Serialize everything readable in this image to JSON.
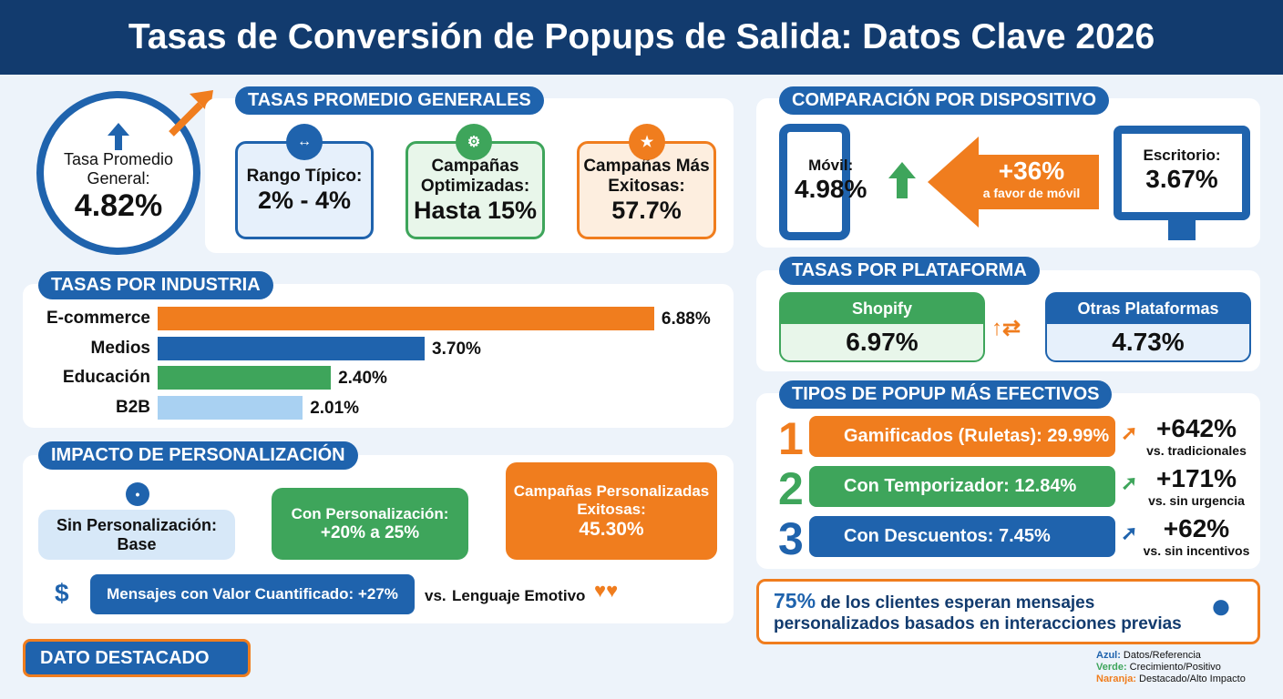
{
  "header": {
    "title": "Tasas de Conversión de Popups de Salida: Datos Clave 2026"
  },
  "average": {
    "label": "Tasa Promedio General:",
    "value": "4.82%"
  },
  "general": {
    "title": "TASAS PROMEDIO GENERALES",
    "cards": [
      {
        "label": "Rango Típico:",
        "value": "2% - 4%"
      },
      {
        "label": "Campañas Optimizadas:",
        "value": "Hasta 15%"
      },
      {
        "label": "Campañas Más Exitosas:",
        "value": "57.7%"
      }
    ]
  },
  "industry": {
    "title": "TASAS POR INDUSTRIA",
    "items": [
      {
        "label": "E-commerce",
        "value": 6.88,
        "value_label": "6.88%"
      },
      {
        "label": "Medios",
        "value": 3.7,
        "value_label": "3.70%"
      },
      {
        "label": "Educación",
        "value": 2.4,
        "value_label": "2.40%"
      },
      {
        "label": "B2B",
        "value": 2.01,
        "value_label": "2.01%"
      }
    ]
  },
  "personalization": {
    "title": "IMPACTO DE PERSONALIZACIÓN",
    "without": {
      "label": "Sin Personalización:",
      "value": "Base"
    },
    "with": {
      "label": "Con Personalización:",
      "value": "+20% a 25%"
    },
    "best": {
      "label": "Campañas Personalizadas Exitosas:",
      "value": "45.30%"
    },
    "message": "Mensajes con Valor Cuantificado: +27%",
    "versus": "vs.",
    "emotive": "Lenguaje Emotivo"
  },
  "featured_tag": "DATO DESTACADO",
  "device": {
    "title": "COMPARACIÓN POR DISPOSITIVO",
    "mobile": {
      "label": "Móvil:",
      "value": "4.98%"
    },
    "difference": {
      "value": "+36%",
      "note": "a favor de móvil"
    },
    "desktop": {
      "label": "Escritorio:",
      "value": "3.67%"
    }
  },
  "platform": {
    "title": "TASAS POR PLATAFORMA",
    "shopify": {
      "label": "Shopify",
      "value": "6.97%"
    },
    "others": {
      "label": "Otras Plataformas",
      "value": "4.73%"
    }
  },
  "popup_types": {
    "title": "TIPOS DE POPUP MÁS EFECTIVOS",
    "items": [
      {
        "rank": "1",
        "label": "Gamificados (Ruletas): 29.99%",
        "lift": "+642%",
        "note": "vs. tradicionales"
      },
      {
        "rank": "2",
        "label": "Con Temporizador: 12.84%",
        "lift": "+171%",
        "note": "vs. sin urgencia"
      },
      {
        "rank": "3",
        "label": "Con Descuentos: 7.45%",
        "lift": "+62%",
        "note": "vs. sin incentivos"
      }
    ]
  },
  "highlight": {
    "value": "75%",
    "text": "de los clientes esperan mensajes personalizados basados en interacciones previas"
  },
  "legend": [
    {
      "key": "Azul:",
      "text": "Datos/Referencia"
    },
    {
      "key": "Verde:",
      "text": "Crecimiento/Positivo"
    },
    {
      "key": "Naranja:",
      "text": "Destacado/Alto Impacto"
    }
  ]
}
